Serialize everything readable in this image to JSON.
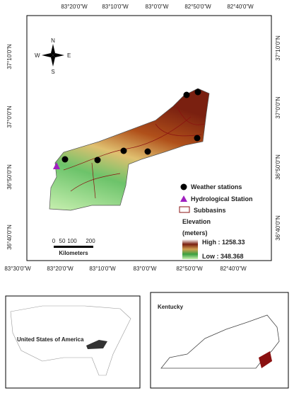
{
  "map": {
    "top_labels": [
      "83°20'0\"W",
      "83°10'0\"W",
      "83°0'0\"W",
      "82°50'0\"W",
      "82°40'0\"W"
    ],
    "bottom_labels": [
      "83°30'0\"W",
      "83°20'0\"W",
      "83°10'0\"W",
      "83°0'0\"W",
      "82°50'0\"W",
      "82°40'0\"W"
    ],
    "left_labels": [
      "37°10'0\"N",
      "37°0'0\"N",
      "36°50'0\"N",
      "36°40'0\"N"
    ],
    "right_labels": [
      "37°10'0\"N",
      "37°0'0\"N",
      "36°50'0\"N",
      "36°40'0\"N"
    ],
    "compass": {
      "n": "N",
      "e": "E",
      "s": "S",
      "w": "W"
    },
    "scale": {
      "ticks": [
        "0",
        "50",
        "100",
        "200"
      ],
      "unit": "Kilometers"
    },
    "legend": {
      "weather": "Weather stations",
      "hydro": "Hydrological Station",
      "subbasins": "Subbasins",
      "elevation": "Elevation",
      "units": "(meters)",
      "high": "High : 1258.33",
      "low": "Low : 348.368"
    },
    "insets": {
      "usa": "United States of America",
      "kentucky": "Kentucky"
    }
  }
}
